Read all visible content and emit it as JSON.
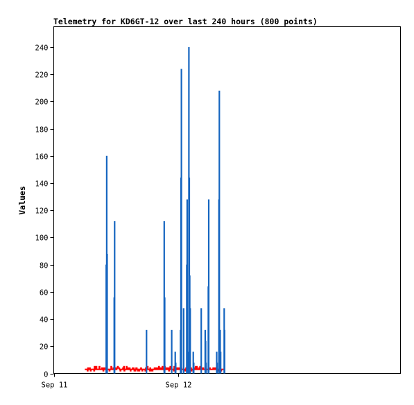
{
  "chart_data": {
    "type": "line",
    "title": "Telemetry for KD6GT-12 over last 240 hours (800 points)",
    "xlabel": "",
    "ylabel": "Values",
    "xlim": [
      "2024-09-11 00:00",
      "2024-09-13 19:00"
    ],
    "ylim": [
      0,
      255
    ],
    "x_ticks": [
      {
        "label": "Sep 11",
        "x": "2024-09-11 00:00"
      },
      {
        "label": "Sep 12",
        "x": "2024-09-12 00:00"
      }
    ],
    "y_ticks": [
      0,
      20,
      40,
      60,
      80,
      100,
      120,
      140,
      160,
      180,
      200,
      220,
      240
    ],
    "grid": false,
    "series": [
      {
        "name": "",
        "color": "#1565c0",
        "spikes": [
          {
            "x": "2024-09-11 10:09",
            "y": 80
          },
          {
            "x": "2024-09-11 10:14",
            "y": 160
          },
          {
            "x": "2024-09-11 10:19",
            "y": 88
          },
          {
            "x": "2024-09-11 11:41",
            "y": 56
          },
          {
            "x": "2024-09-11 11:46",
            "y": 112
          },
          {
            "x": "2024-09-11 17:56",
            "y": 32
          },
          {
            "x": "2024-09-11 21:21",
            "y": 112
          },
          {
            "x": "2024-09-11 21:26",
            "y": 56
          },
          {
            "x": "2024-09-11 22:48",
            "y": 32
          },
          {
            "x": "2024-09-11 23:29",
            "y": 16
          },
          {
            "x": "2024-09-11 23:34",
            "y": 8
          },
          {
            "x": "2024-09-12 00:30",
            "y": 32
          },
          {
            "x": "2024-09-12 00:35",
            "y": 144
          },
          {
            "x": "2024-09-12 00:40",
            "y": 224
          },
          {
            "x": "2024-09-12 01:06",
            "y": 48
          },
          {
            "x": "2024-09-12 01:42",
            "y": 80
          },
          {
            "x": "2024-09-12 01:47",
            "y": 128
          },
          {
            "x": "2024-09-12 02:02",
            "y": 16
          },
          {
            "x": "2024-09-12 02:07",
            "y": 240
          },
          {
            "x": "2024-09-12 02:12",
            "y": 144
          },
          {
            "x": "2024-09-12 02:17",
            "y": 72
          },
          {
            "x": "2024-09-12 02:22",
            "y": 48
          },
          {
            "x": "2024-09-12 02:58",
            "y": 16
          },
          {
            "x": "2024-09-12 03:03",
            "y": 8
          },
          {
            "x": "2024-09-12 04:30",
            "y": 48
          },
          {
            "x": "2024-09-12 05:16",
            "y": 32
          },
          {
            "x": "2024-09-12 05:21",
            "y": 24
          },
          {
            "x": "2024-09-12 05:26",
            "y": 8
          },
          {
            "x": "2024-09-12 05:52",
            "y": 64
          },
          {
            "x": "2024-09-12 05:57",
            "y": 128
          },
          {
            "x": "2024-09-12 07:29",
            "y": 16
          },
          {
            "x": "2024-09-12 07:34",
            "y": 8
          },
          {
            "x": "2024-09-12 07:55",
            "y": 128
          },
          {
            "x": "2024-09-12 08:00",
            "y": 208
          },
          {
            "x": "2024-09-12 08:10",
            "y": 32
          },
          {
            "x": "2024-09-12 08:15",
            "y": 16
          },
          {
            "x": "2024-09-12 08:56",
            "y": 48
          },
          {
            "x": "2024-09-12 09:01",
            "y": 32
          }
        ]
      },
      {
        "name": "",
        "color": "#ff0000",
        "x_range": [
          "2024-09-11 06:00",
          "2024-09-12 09:05"
        ],
        "baseline": 3,
        "jitter_values": [
          2,
          3,
          4,
          5
        ]
      }
    ]
  }
}
